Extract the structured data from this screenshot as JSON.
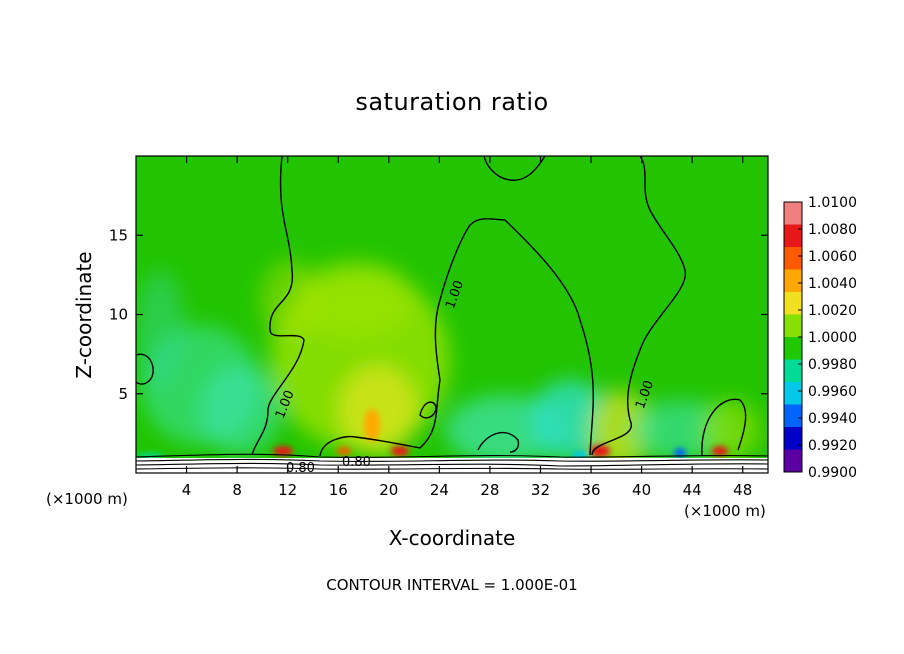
{
  "chart_data": {
    "type": "heatmap",
    "title": "saturation ratio",
    "xlabel": "X-coordinate",
    "ylabel": "Z-coordinate",
    "x_unit_left": "(×1000 m)",
    "x_unit_right": "(×1000 m)",
    "note": "CONTOUR INTERVAL = 1.000E-01",
    "xlim": [
      0,
      50
    ],
    "ylim": [
      0,
      20
    ],
    "x_ticks": [
      4,
      8,
      12,
      16,
      20,
      24,
      28,
      32,
      36,
      40,
      44,
      48
    ],
    "y_ticks": [
      5,
      10,
      15
    ],
    "colorbar": {
      "levels": [
        "1.0100",
        "1.0080",
        "1.0060",
        "1.0040",
        "1.0020",
        "1.0000",
        "0.9980",
        "0.9960",
        "0.9940",
        "0.9920",
        "0.9900"
      ],
      "colors": [
        "#f08080",
        "#e81818",
        "#ff5a00",
        "#ffa800",
        "#f0e020",
        "#86e000",
        "#20c800",
        "#00dc96",
        "#00c8e6",
        "#0064ff",
        "#0000c8",
        "#5a00a0"
      ]
    },
    "background_color": "#22c400",
    "contour_labels": [
      "1.00",
      "1.00",
      "1.00",
      "0.80",
      "0.80"
    ]
  }
}
